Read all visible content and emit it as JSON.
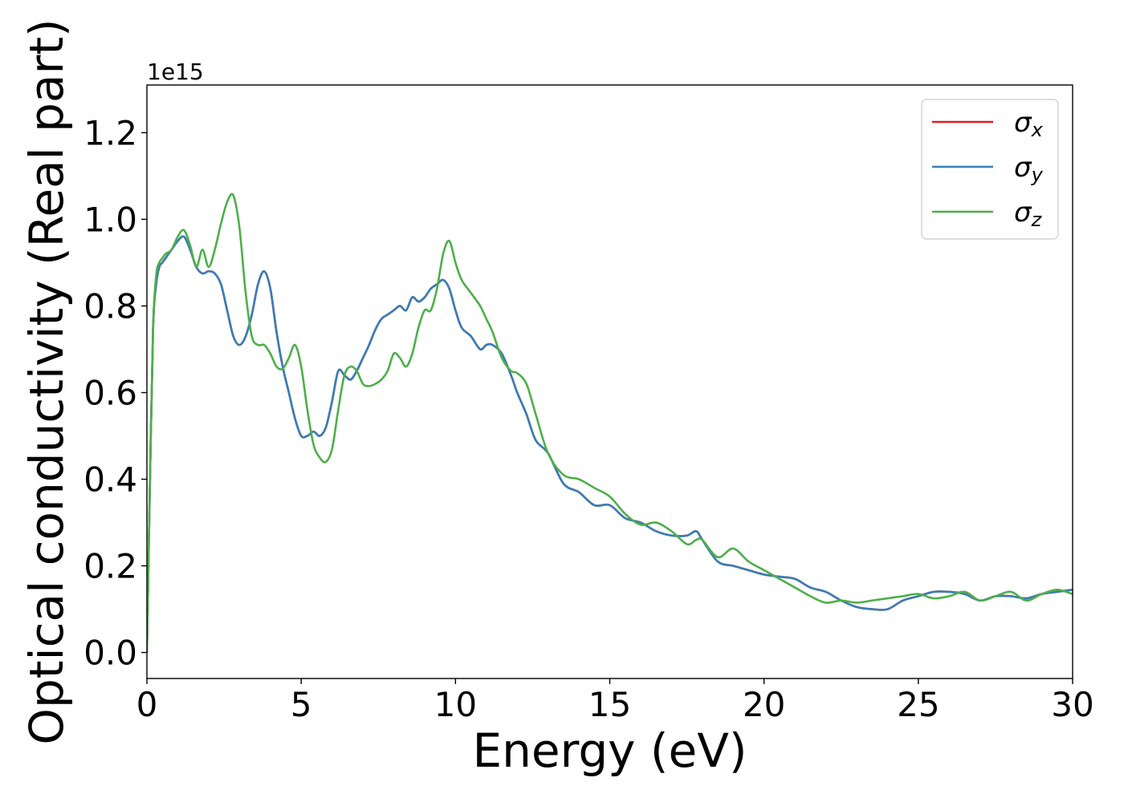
{
  "chart_data": {
    "type": "line",
    "title": "",
    "xlabel": "Energy (eV)",
    "ylabel": "Optical conductivity (Real part)",
    "y_offset_label": "1e15",
    "xlim": [
      0,
      30
    ],
    "ylim": [
      -0.06,
      1.31
    ],
    "y_scale_factor": 1000000000000000.0,
    "x_ticks": [
      0,
      5,
      10,
      15,
      20,
      25,
      30
    ],
    "x_tick_labels": [
      "0",
      "5",
      "10",
      "15",
      "20",
      "25",
      "30"
    ],
    "y_ticks": [
      0.0,
      0.2,
      0.4,
      0.6,
      0.8,
      1.0,
      1.2
    ],
    "y_tick_labels": [
      "0.0",
      "0.2",
      "0.4",
      "0.6",
      "0.8",
      "1.0",
      "1.2"
    ],
    "grid": false,
    "legend_position": "top-right",
    "legend": [
      {
        "base": "σ",
        "sub": "x",
        "color": "#e41a1c"
      },
      {
        "base": "σ",
        "sub": "y",
        "color": "#377eb8"
      },
      {
        "base": "σ",
        "sub": "z",
        "color": "#4daf4a"
      }
    ],
    "series": [
      {
        "name": "σx",
        "color": "#e41a1c",
        "x": [
          0,
          0.1,
          0.2,
          0.3,
          0.4,
          0.5,
          0.6,
          0.8,
          1.0,
          1.2,
          1.4,
          1.6,
          1.8,
          2.0,
          2.2,
          2.4,
          2.6,
          2.8,
          3.0,
          3.2,
          3.4,
          3.6,
          3.8,
          4.0,
          4.2,
          4.4,
          4.6,
          4.8,
          5.0,
          5.2,
          5.4,
          5.6,
          5.8,
          6.0,
          6.2,
          6.4,
          6.6,
          6.8,
          7.0,
          7.2,
          7.4,
          7.6,
          7.8,
          8.0,
          8.2,
          8.4,
          8.6,
          8.8,
          9.0,
          9.2,
          9.4,
          9.6,
          9.8,
          10.0,
          10.2,
          10.5,
          10.8,
          11.0,
          11.2,
          11.5,
          11.8,
          12.0,
          12.3,
          12.6,
          13.0,
          13.5,
          14.0,
          14.5,
          15.0,
          15.5,
          16.0,
          16.5,
          17.0,
          17.5,
          17.8,
          18.0,
          18.5,
          19.0,
          19.5,
          20.0,
          20.5,
          21.0,
          21.5,
          22.0,
          22.5,
          23.0,
          23.5,
          24.0,
          24.5,
          25.0,
          25.5,
          26.0,
          26.5,
          27.0,
          27.5,
          28.0,
          28.5,
          29.0,
          29.5,
          30.0
        ],
        "y": [
          0.0,
          0.4,
          0.75,
          0.85,
          0.89,
          0.9,
          0.91,
          0.93,
          0.95,
          0.96,
          0.93,
          0.89,
          0.875,
          0.88,
          0.875,
          0.85,
          0.79,
          0.73,
          0.71,
          0.73,
          0.78,
          0.85,
          0.88,
          0.84,
          0.74,
          0.66,
          0.6,
          0.54,
          0.5,
          0.5,
          0.51,
          0.5,
          0.52,
          0.58,
          0.65,
          0.64,
          0.63,
          0.65,
          0.68,
          0.71,
          0.745,
          0.77,
          0.78,
          0.79,
          0.8,
          0.79,
          0.82,
          0.81,
          0.82,
          0.84,
          0.85,
          0.86,
          0.84,
          0.79,
          0.75,
          0.73,
          0.7,
          0.71,
          0.71,
          0.69,
          0.64,
          0.6,
          0.55,
          0.49,
          0.46,
          0.39,
          0.37,
          0.34,
          0.34,
          0.31,
          0.3,
          0.28,
          0.27,
          0.27,
          0.28,
          0.26,
          0.21,
          0.2,
          0.19,
          0.18,
          0.175,
          0.17,
          0.15,
          0.14,
          0.12,
          0.105,
          0.1,
          0.1,
          0.12,
          0.13,
          0.14,
          0.14,
          0.135,
          0.12,
          0.13,
          0.13,
          0.125,
          0.135,
          0.14,
          0.145
        ]
      },
      {
        "name": "σy",
        "color": "#377eb8",
        "x": [
          0,
          0.1,
          0.2,
          0.3,
          0.4,
          0.5,
          0.6,
          0.8,
          1.0,
          1.2,
          1.4,
          1.6,
          1.8,
          2.0,
          2.2,
          2.4,
          2.6,
          2.8,
          3.0,
          3.2,
          3.4,
          3.6,
          3.8,
          4.0,
          4.2,
          4.4,
          4.6,
          4.8,
          5.0,
          5.2,
          5.4,
          5.6,
          5.8,
          6.0,
          6.2,
          6.4,
          6.6,
          6.8,
          7.0,
          7.2,
          7.4,
          7.6,
          7.8,
          8.0,
          8.2,
          8.4,
          8.6,
          8.8,
          9.0,
          9.2,
          9.4,
          9.6,
          9.8,
          10.0,
          10.2,
          10.5,
          10.8,
          11.0,
          11.2,
          11.5,
          11.8,
          12.0,
          12.3,
          12.6,
          13.0,
          13.5,
          14.0,
          14.5,
          15.0,
          15.5,
          16.0,
          16.5,
          17.0,
          17.5,
          17.8,
          18.0,
          18.5,
          19.0,
          19.5,
          20.0,
          20.5,
          21.0,
          21.5,
          22.0,
          22.5,
          23.0,
          23.5,
          24.0,
          24.5,
          25.0,
          25.5,
          26.0,
          26.5,
          27.0,
          27.5,
          28.0,
          28.5,
          29.0,
          29.5,
          30.0
        ],
        "y": [
          0.0,
          0.4,
          0.75,
          0.85,
          0.89,
          0.9,
          0.91,
          0.93,
          0.95,
          0.96,
          0.93,
          0.89,
          0.875,
          0.88,
          0.875,
          0.85,
          0.79,
          0.73,
          0.71,
          0.73,
          0.78,
          0.85,
          0.88,
          0.84,
          0.74,
          0.66,
          0.6,
          0.54,
          0.5,
          0.5,
          0.51,
          0.5,
          0.52,
          0.58,
          0.65,
          0.64,
          0.63,
          0.65,
          0.68,
          0.71,
          0.745,
          0.77,
          0.78,
          0.79,
          0.8,
          0.79,
          0.82,
          0.81,
          0.82,
          0.84,
          0.85,
          0.86,
          0.84,
          0.79,
          0.75,
          0.73,
          0.7,
          0.71,
          0.71,
          0.69,
          0.64,
          0.6,
          0.55,
          0.49,
          0.46,
          0.39,
          0.37,
          0.34,
          0.34,
          0.31,
          0.3,
          0.28,
          0.27,
          0.27,
          0.28,
          0.26,
          0.21,
          0.2,
          0.19,
          0.18,
          0.175,
          0.17,
          0.15,
          0.14,
          0.12,
          0.105,
          0.1,
          0.1,
          0.12,
          0.13,
          0.14,
          0.14,
          0.135,
          0.12,
          0.13,
          0.13,
          0.125,
          0.135,
          0.14,
          0.145
        ]
      },
      {
        "name": "σz",
        "color": "#4daf4a",
        "x": [
          0,
          0.1,
          0.2,
          0.3,
          0.4,
          0.5,
          0.6,
          0.8,
          1.0,
          1.2,
          1.4,
          1.6,
          1.8,
          2.0,
          2.2,
          2.4,
          2.6,
          2.8,
          3.0,
          3.2,
          3.4,
          3.6,
          3.8,
          4.0,
          4.2,
          4.4,
          4.6,
          4.8,
          5.0,
          5.2,
          5.4,
          5.6,
          5.8,
          6.0,
          6.2,
          6.4,
          6.6,
          6.8,
          7.0,
          7.2,
          7.4,
          7.6,
          7.8,
          8.0,
          8.2,
          8.4,
          8.6,
          8.8,
          9.0,
          9.2,
          9.4,
          9.6,
          9.8,
          10.0,
          10.2,
          10.5,
          10.8,
          11.0,
          11.2,
          11.5,
          11.8,
          12.0,
          12.3,
          12.6,
          13.0,
          13.5,
          14.0,
          14.5,
          15.0,
          15.5,
          16.0,
          16.5,
          17.0,
          17.5,
          17.8,
          18.0,
          18.5,
          19.0,
          19.5,
          20.0,
          20.5,
          21.0,
          21.5,
          22.0,
          22.5,
          23.0,
          23.5,
          24.0,
          24.5,
          25.0,
          25.5,
          26.0,
          26.5,
          27.0,
          27.5,
          28.0,
          28.5,
          29.0,
          29.5,
          30.0
        ],
        "y": [
          0.0,
          0.4,
          0.75,
          0.87,
          0.9,
          0.91,
          0.92,
          0.93,
          0.96,
          0.975,
          0.94,
          0.89,
          0.93,
          0.89,
          0.93,
          0.99,
          1.04,
          1.055,
          0.98,
          0.83,
          0.73,
          0.71,
          0.71,
          0.69,
          0.66,
          0.655,
          0.68,
          0.71,
          0.66,
          0.56,
          0.48,
          0.45,
          0.44,
          0.47,
          0.56,
          0.64,
          0.66,
          0.65,
          0.62,
          0.615,
          0.62,
          0.63,
          0.65,
          0.69,
          0.68,
          0.66,
          0.69,
          0.75,
          0.79,
          0.79,
          0.84,
          0.92,
          0.95,
          0.9,
          0.86,
          0.83,
          0.8,
          0.77,
          0.74,
          0.68,
          0.65,
          0.645,
          0.62,
          0.55,
          0.46,
          0.41,
          0.4,
          0.38,
          0.36,
          0.32,
          0.295,
          0.3,
          0.28,
          0.25,
          0.26,
          0.26,
          0.22,
          0.24,
          0.21,
          0.19,
          0.17,
          0.15,
          0.13,
          0.115,
          0.12,
          0.115,
          0.12,
          0.125,
          0.13,
          0.135,
          0.125,
          0.13,
          0.14,
          0.12,
          0.13,
          0.14,
          0.12,
          0.135,
          0.145,
          0.135
        ]
      }
    ]
  }
}
